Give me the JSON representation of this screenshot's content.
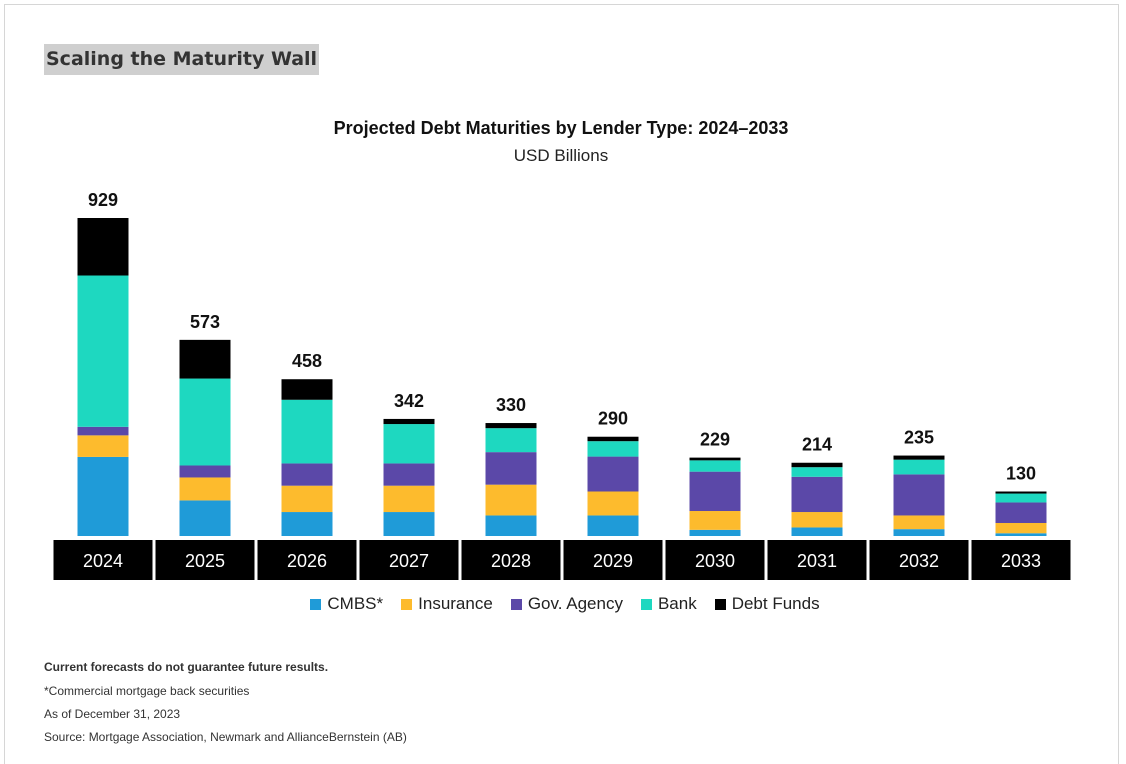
{
  "page": {
    "heading": "Scaling the Maturity Wall"
  },
  "chart_data": {
    "type": "bar",
    "stacked": true,
    "title": "Projected Debt Maturities by Lender Type: 2024–2033",
    "subtitle": "USD Billions",
    "categories": [
      "2024",
      "2025",
      "2026",
      "2027",
      "2028",
      "2029",
      "2030",
      "2031",
      "2032",
      "2033"
    ],
    "totals": [
      929,
      573,
      458,
      342,
      330,
      290,
      229,
      214,
      235,
      130
    ],
    "series": [
      {
        "name": "CMBS*",
        "color": "#1f9bd8",
        "values": [
          231,
          104,
          70,
          70,
          60,
          60,
          18,
          25,
          20,
          8
        ]
      },
      {
        "name": "Insurance",
        "color": "#fdbb2d",
        "values": [
          63,
          67,
          77,
          77,
          90,
          70,
          55,
          45,
          40,
          30
        ]
      },
      {
        "name": "Gov. Agency",
        "color": "#5b48a8",
        "values": [
          25,
          35,
          65,
          65,
          95,
          102,
          115,
          103,
          120,
          60
        ]
      },
      {
        "name": "Bank",
        "color": "#1ed8c0",
        "values": [
          442,
          254,
          186,
          115,
          70,
          45,
          33,
          28,
          43,
          26
        ]
      },
      {
        "name": "Debt Funds",
        "color": "#000000",
        "values": [
          168,
          113,
          60,
          15,
          15,
          13,
          8,
          13,
          12,
          6
        ]
      }
    ],
    "ylim": [
      0,
      929
    ],
    "grid": false,
    "legend_position": "bottom"
  },
  "footnotes": {
    "disclaimer": "Current forecasts do not guarantee future results.",
    "cmbs_note": "*Commercial mortgage back securities",
    "as_of": "As of December 31, 2023",
    "source": "Source: Mortgage Association, Newmark and AllianceBernstein (AB)"
  }
}
